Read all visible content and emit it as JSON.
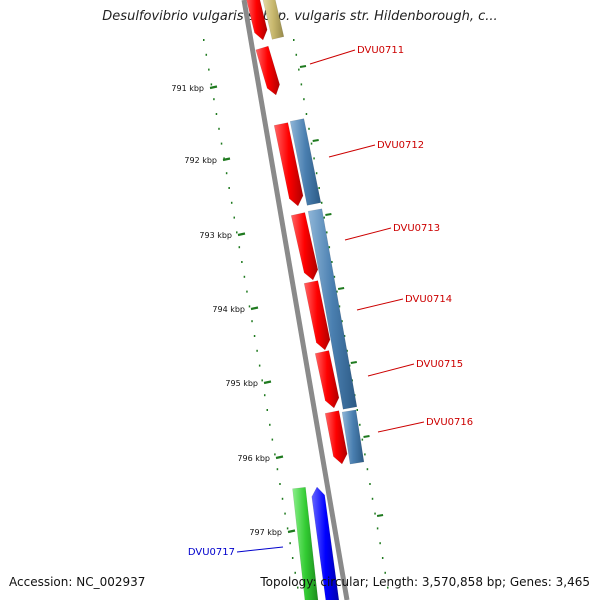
{
  "title": "Desulfovibrio vulgaris subsp. vulgaris str. Hildenborough, c...",
  "footer": {
    "accession": "Accession: NC_002937",
    "topology": "Topology: circular; Length: 3,570,858 bp; Genes: 3,465"
  },
  "colors": {
    "backbone": "#8a8a8a",
    "tick": "#1f7a1f",
    "red_gene": "#ff0000",
    "blue_gene": "#4a7fb0",
    "green_gene": "#33cc33",
    "dark_blue_gene": "#0000ff",
    "tan_gene": "#c8b86e",
    "label_red": "#cc0000",
    "label_blue": "#0000cc"
  },
  "kbp_ticks": [
    {
      "label": "791 kbp"
    },
    {
      "label": "792 kbp"
    },
    {
      "label": "793 kbp"
    },
    {
      "label": "794 kbp"
    },
    {
      "label": "795 kbp"
    },
    {
      "label": "796 kbp"
    },
    {
      "label": "797 kbp"
    }
  ],
  "gene_labels": [
    {
      "name": "DVU0711",
      "color": "#cc0000"
    },
    {
      "name": "DVU0712",
      "color": "#cc0000"
    },
    {
      "name": "DVU0713",
      "color": "#cc0000"
    },
    {
      "name": "DVU0714",
      "color": "#cc0000"
    },
    {
      "name": "DVU0715",
      "color": "#cc0000"
    },
    {
      "name": "DVU0716",
      "color": "#cc0000"
    },
    {
      "name": "DVU0717",
      "color": "#0000cc"
    }
  ]
}
